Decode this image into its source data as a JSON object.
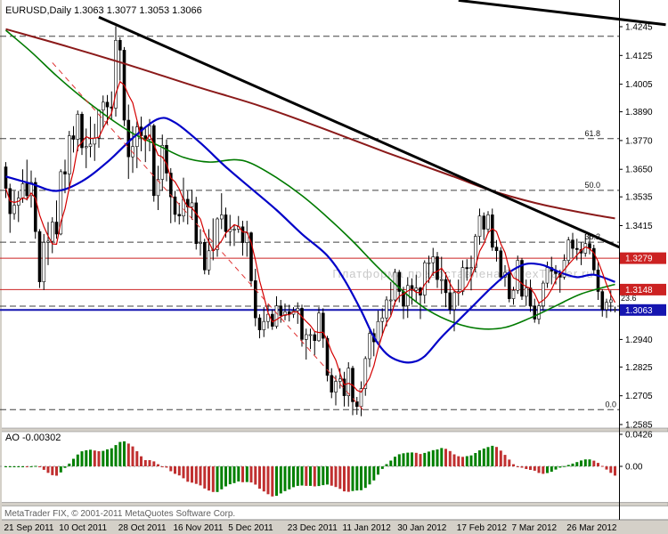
{
  "header": {
    "title": "EURUSD,Daily 1.3063 1.3077 1.3053 1.3066"
  },
  "watermark": "Платформа предоставлена ForexTrader.ru",
  "copyright": "MetaTrader FIX, © 2001-2011 MetaQuotes Software Corp.",
  "price_axis": {
    "ticks": [
      "1.4245",
      "1.4125",
      "1.4005",
      "1.3890",
      "1.3770",
      "1.3650",
      "1.3535",
      "1.3415",
      "1.2940",
      "1.2825",
      "1.2705",
      "1.2585"
    ]
  },
  "time_axis": {
    "labels": [
      {
        "text": "21 Sep 2011",
        "index": 0
      },
      {
        "text": "10 Oct 2011",
        "index": 13
      },
      {
        "text": "28 Oct 2011",
        "index": 27
      },
      {
        "text": "16 Nov 2011",
        "index": 40
      },
      {
        "text": "5 Dec 2011",
        "index": 53
      },
      {
        "text": "23 Dec 2011",
        "index": 67
      },
      {
        "text": "11 Jan 2012",
        "index": 80
      },
      {
        "text": "30 Jan 2012",
        "index": 93
      },
      {
        "text": "17 Feb 2012",
        "index": 107
      },
      {
        "text": "7 Mar 2012",
        "index": 120
      },
      {
        "text": "26 Mar 2012",
        "index": 133
      }
    ]
  },
  "indicator_panel": {
    "label": "AO -0.00302",
    "axis": [
      {
        "text": "0.0426",
        "value": 0.0426
      },
      {
        "text": "0.00",
        "value": 0
      }
    ]
  },
  "colors": {
    "bull": "#ffffff",
    "bear": "#000000",
    "wick": "#000000",
    "ma_fast": "#d40000",
    "ma_green": "#007a00",
    "ma_blue": "#0000c8",
    "ma_maroon": "#8b1a1a",
    "trendline": "#000000",
    "channel": "#e03030",
    "hline_red": "#cc2222",
    "hline_blue": "#1515b0",
    "tag_red": "#cc2222",
    "tag_blue": "#1515b0",
    "ao_up": "#008000",
    "ao_down": "#c03030",
    "fib": "#404040"
  },
  "chart_data": {
    "type": "candlestick",
    "symbol": "EURUSD",
    "timeframe": "Daily",
    "last_ohlc": {
      "open": 1.3063,
      "high": 1.3077,
      "low": 1.3053,
      "close": 1.3066
    },
    "y_axis_range": {
      "top": 1.4245,
      "bottom": 1.2585
    },
    "candles": [
      [
        1.366,
        1.368,
        1.353,
        1.357
      ],
      [
        1.357,
        1.359,
        1.3385,
        1.3465
      ],
      [
        1.3465,
        1.356,
        1.344,
        1.35
      ],
      [
        1.35,
        1.356,
        1.343,
        1.353
      ],
      [
        1.353,
        1.365,
        1.351,
        1.359
      ],
      [
        1.359,
        1.369,
        1.352,
        1.354
      ],
      [
        1.354,
        1.3645,
        1.349,
        1.3595
      ],
      [
        1.3595,
        1.3615,
        1.336,
        1.339
      ],
      [
        1.339,
        1.34,
        1.3155,
        1.318
      ],
      [
        1.318,
        1.338,
        1.3146,
        1.3345
      ],
      [
        1.3345,
        1.343,
        1.325,
        1.335
      ],
      [
        1.335,
        1.345,
        1.33,
        1.343
      ],
      [
        1.343,
        1.352,
        1.336,
        1.338
      ],
      [
        1.338,
        1.365,
        1.3375,
        1.364
      ],
      [
        1.364,
        1.369,
        1.355,
        1.363
      ],
      [
        1.363,
        1.381,
        1.357,
        1.379
      ],
      [
        1.379,
        1.383,
        1.372,
        1.3775
      ],
      [
        1.3775,
        1.3895,
        1.3725,
        1.388
      ],
      [
        1.388,
        1.389,
        1.371,
        1.374
      ],
      [
        1.374,
        1.382,
        1.3655,
        1.3745
      ],
      [
        1.3745,
        1.387,
        1.37,
        1.3755
      ],
      [
        1.3755,
        1.384,
        1.3685,
        1.378
      ],
      [
        1.378,
        1.39,
        1.374,
        1.3897
      ],
      [
        1.3897,
        1.3958,
        1.382,
        1.393
      ],
      [
        1.393,
        1.396,
        1.3835,
        1.391
      ],
      [
        1.391,
        1.3975,
        1.3855,
        1.3905
      ],
      [
        1.3905,
        1.4247,
        1.387,
        1.4188
      ],
      [
        1.4188,
        1.42,
        1.402,
        1.4147
      ],
      [
        1.4147,
        1.416,
        1.383,
        1.3855
      ],
      [
        1.3855,
        1.392,
        1.361,
        1.3702
      ],
      [
        1.3702,
        1.383,
        1.3635,
        1.3745
      ],
      [
        1.3745,
        1.385,
        1.3655,
        1.3827
      ],
      [
        1.3827,
        1.387,
        1.3725,
        1.379
      ],
      [
        1.379,
        1.382,
        1.368,
        1.3775
      ],
      [
        1.3775,
        1.386,
        1.3725,
        1.3832
      ],
      [
        1.3832,
        1.384,
        1.3515,
        1.354
      ],
      [
        1.354,
        1.3665,
        1.348,
        1.3608
      ],
      [
        1.3608,
        1.3795,
        1.356,
        1.375
      ],
      [
        1.375,
        1.3775,
        1.36,
        1.3634
      ],
      [
        1.3634,
        1.3655,
        1.3425,
        1.3535
      ],
      [
        1.3535,
        1.356,
        1.343,
        1.3462
      ],
      [
        1.3462,
        1.351,
        1.342,
        1.3455
      ],
      [
        1.3455,
        1.3615,
        1.343,
        1.3525
      ],
      [
        1.3525,
        1.356,
        1.342,
        1.3493
      ],
      [
        1.3493,
        1.3565,
        1.344,
        1.351
      ],
      [
        1.351,
        1.3535,
        1.3315,
        1.334
      ],
      [
        1.334,
        1.34,
        1.329,
        1.3345
      ],
      [
        1.3345,
        1.336,
        1.3212,
        1.323
      ],
      [
        1.323,
        1.34,
        1.321,
        1.331
      ],
      [
        1.331,
        1.3445,
        1.327,
        1.3315
      ],
      [
        1.3315,
        1.345,
        1.3285,
        1.3443
      ],
      [
        1.3443,
        1.355,
        1.34,
        1.346
      ],
      [
        1.346,
        1.349,
        1.3365,
        1.339
      ],
      [
        1.339,
        1.346,
        1.333,
        1.34
      ],
      [
        1.34,
        1.342,
        1.333,
        1.34
      ],
      [
        1.34,
        1.3455,
        1.3385,
        1.341
      ],
      [
        1.341,
        1.3435,
        1.329,
        1.3344
      ],
      [
        1.3344,
        1.3435,
        1.3285,
        1.3385
      ],
      [
        1.3385,
        1.339,
        1.316,
        1.3185
      ],
      [
        1.3185,
        1.3235,
        1.2995,
        1.303
      ],
      [
        1.303,
        1.3045,
        1.2945,
        1.298
      ],
      [
        1.298,
        1.3075,
        1.295,
        1.3015
      ],
      [
        1.3015,
        1.3085,
        1.2985,
        1.3045
      ],
      [
        1.3045,
        1.3065,
        1.298,
        1.2995
      ],
      [
        1.2995,
        1.312,
        1.2985,
        1.308
      ],
      [
        1.308,
        1.3105,
        1.301,
        1.304
      ],
      [
        1.304,
        1.309,
        1.302,
        1.3055
      ],
      [
        1.3055,
        1.3085,
        1.3015,
        1.3045
      ],
      [
        1.3045,
        1.3075,
        1.303,
        1.306
      ],
      [
        1.306,
        1.3095,
        1.3005,
        1.307
      ],
      [
        1.307,
        1.3085,
        1.291,
        1.294
      ],
      [
        1.294,
        1.2985,
        1.2856,
        1.296
      ],
      [
        1.296,
        1.2985,
        1.29,
        1.296
      ],
      [
        1.296,
        1.2975,
        1.2875,
        1.2935
      ],
      [
        1.2935,
        1.3075,
        1.293,
        1.305
      ],
      [
        1.305,
        1.307,
        1.2905,
        1.2945
      ],
      [
        1.2945,
        1.2955,
        1.2765,
        1.279
      ],
      [
        1.279,
        1.282,
        1.2695,
        1.272
      ],
      [
        1.272,
        1.279,
        1.2665,
        1.2765
      ],
      [
        1.2765,
        1.282,
        1.2735,
        1.2775
      ],
      [
        1.2775,
        1.2805,
        1.266,
        1.2705
      ],
      [
        1.2705,
        1.2845,
        1.266,
        1.282
      ],
      [
        1.282,
        1.283,
        1.2624,
        1.268
      ],
      [
        1.268,
        1.27,
        1.2626,
        1.266
      ],
      [
        1.266,
        1.2765,
        1.262,
        1.2735
      ],
      [
        1.2735,
        1.287,
        1.2705,
        1.286
      ],
      [
        1.286,
        1.2985,
        1.2825,
        1.2965
      ],
      [
        1.2965,
        1.2985,
        1.287,
        1.293
      ],
      [
        1.293,
        1.306,
        1.292,
        1.3015
      ],
      [
        1.3015,
        1.307,
        1.2955,
        1.303
      ],
      [
        1.303,
        1.312,
        1.2995,
        1.3105
      ],
      [
        1.3105,
        1.318,
        1.304,
        1.3105
      ],
      [
        1.3105,
        1.3235,
        1.3085,
        1.322
      ],
      [
        1.322,
        1.323,
        1.3095,
        1.314
      ],
      [
        1.314,
        1.316,
        1.3025,
        1.308
      ],
      [
        1.308,
        1.32,
        1.303,
        1.3165
      ],
      [
        1.3165,
        1.3195,
        1.3085,
        1.3145
      ],
      [
        1.3145,
        1.321,
        1.3095,
        1.3155
      ],
      [
        1.3155,
        1.316,
        1.3025,
        1.3125
      ],
      [
        1.3125,
        1.327,
        1.309,
        1.326
      ],
      [
        1.326,
        1.329,
        1.3175,
        1.326
      ],
      [
        1.326,
        1.3322,
        1.3205,
        1.3285
      ],
      [
        1.3285,
        1.3305,
        1.3155,
        1.319
      ],
      [
        1.319,
        1.3285,
        1.313,
        1.319
      ],
      [
        1.319,
        1.322,
        1.3075,
        1.3135
      ],
      [
        1.3135,
        1.319,
        1.3045,
        1.3065
      ],
      [
        1.3065,
        1.3145,
        1.2974,
        1.3135
      ],
      [
        1.3135,
        1.319,
        1.308,
        1.314
      ],
      [
        1.314,
        1.327,
        1.3125,
        1.324
      ],
      [
        1.324,
        1.3275,
        1.3185,
        1.3235
      ],
      [
        1.3235,
        1.329,
        1.3145,
        1.324
      ],
      [
        1.324,
        1.338,
        1.322,
        1.337
      ],
      [
        1.337,
        1.3486,
        1.3335,
        1.3455
      ],
      [
        1.3455,
        1.347,
        1.3355,
        1.34
      ],
      [
        1.34,
        1.3475,
        1.338,
        1.346
      ],
      [
        1.346,
        1.3486,
        1.331,
        1.3325
      ],
      [
        1.3325,
        1.3355,
        1.3265,
        1.331
      ],
      [
        1.331,
        1.3325,
        1.3185,
        1.32
      ],
      [
        1.32,
        1.325,
        1.316,
        1.322
      ],
      [
        1.322,
        1.324,
        1.3095,
        1.311
      ],
      [
        1.311,
        1.316,
        1.3085,
        1.3145
      ],
      [
        1.3145,
        1.329,
        1.313,
        1.327
      ],
      [
        1.327,
        1.328,
        1.3105,
        1.312
      ],
      [
        1.312,
        1.319,
        1.308,
        1.3155
      ],
      [
        1.3155,
        1.319,
        1.3055,
        1.308
      ],
      [
        1.308,
        1.311,
        1.301,
        1.3025
      ],
      [
        1.3025,
        1.309,
        1.3004,
        1.308
      ],
      [
        1.308,
        1.3185,
        1.306,
        1.3175
      ],
      [
        1.3175,
        1.3265,
        1.3155,
        1.324
      ],
      [
        1.324,
        1.3285,
        1.317,
        1.3225
      ],
      [
        1.3225,
        1.325,
        1.317,
        1.3215
      ],
      [
        1.3215,
        1.323,
        1.3135,
        1.32
      ],
      [
        1.32,
        1.3295,
        1.319,
        1.327
      ],
      [
        1.327,
        1.3368,
        1.325,
        1.3355
      ],
      [
        1.3355,
        1.3385,
        1.328,
        1.332
      ],
      [
        1.332,
        1.336,
        1.327,
        1.3315
      ],
      [
        1.3315,
        1.3345,
        1.325,
        1.33
      ],
      [
        1.33,
        1.338,
        1.3285,
        1.334
      ],
      [
        1.334,
        1.3385,
        1.3295,
        1.332
      ],
      [
        1.332,
        1.3335,
        1.321,
        1.323
      ],
      [
        1.323,
        1.3265,
        1.3105,
        1.314
      ],
      [
        1.314,
        1.315,
        1.3035,
        1.3065
      ],
      [
        1.3065,
        1.311,
        1.303,
        1.3095
      ],
      [
        1.3095,
        1.3145,
        1.3055,
        1.3105
      ],
      [
        1.3063,
        1.3077,
        1.3053,
        1.3066
      ]
    ],
    "overlays": {
      "fib_levels": [
        {
          "label": "",
          "price": 1.4205
        },
        {
          "label": "61.8",
          "price": 1.3778
        },
        {
          "label": "50.0",
          "price": 1.3562
        },
        {
          "label": "38.2",
          "price": 1.3346
        },
        {
          "label": "23.6",
          "price": 1.3079
        },
        {
          "label": "0.0",
          "price": 1.2647
        }
      ],
      "hlines": [
        {
          "price": 1.3279,
          "tag": "1.3279",
          "style": "red",
          "width": 1
        },
        {
          "price": 1.3148,
          "tag": "1.3148",
          "style": "red",
          "width": 1
        },
        {
          "price": 1.3063,
          "tag": "1.3063",
          "style": "blue",
          "width": 2
        }
      ],
      "trendlines": [
        {
          "name": "trendline-downtrend-main",
          "from": [
            22,
            1.4285
          ],
          "to": [
            145,
            1.3325
          ],
          "width": 3
        },
        {
          "name": "trendline-downtrend-upper",
          "from": [
            107,
            1.4355
          ],
          "to": [
            156,
            1.4253
          ],
          "width": 3
        }
      ],
      "channel_dashed_red": {
        "from": [
          11,
          1.4095
        ],
        "to": [
          85,
          1.2635
        ]
      },
      "ma_fast_red": {
        "type": "sma_close",
        "period": 5
      },
      "ma_green_anchors": [
        [
          0,
          1.423
        ],
        [
          6,
          1.414
        ],
        [
          12,
          1.404
        ],
        [
          18,
          1.395
        ],
        [
          24,
          1.387
        ],
        [
          30,
          1.38
        ],
        [
          36,
          1.375
        ],
        [
          42,
          1.37
        ],
        [
          48,
          1.368
        ],
        [
          54,
          1.369
        ],
        [
          58,
          1.3675
        ],
        [
          64,
          1.3615
        ],
        [
          70,
          1.354
        ],
        [
          76,
          1.345
        ],
        [
          82,
          1.335
        ],
        [
          88,
          1.324
        ],
        [
          94,
          1.314
        ],
        [
          100,
          1.306
        ],
        [
          106,
          1.301
        ],
        [
          112,
          1.2985
        ],
        [
          118,
          1.299
        ],
        [
          124,
          1.303
        ],
        [
          130,
          1.308
        ],
        [
          136,
          1.313
        ],
        [
          144,
          1.317
        ]
      ],
      "ma_blue_anchors": [
        [
          0,
          1.362
        ],
        [
          6,
          1.359
        ],
        [
          12,
          1.356
        ],
        [
          18,
          1.36
        ],
        [
          24,
          1.368
        ],
        [
          30,
          1.378
        ],
        [
          36,
          1.386
        ],
        [
          40,
          1.3845
        ],
        [
          46,
          1.376
        ],
        [
          52,
          1.366
        ],
        [
          58,
          1.357
        ],
        [
          64,
          1.348
        ],
        [
          70,
          1.338
        ],
        [
          76,
          1.329
        ],
        [
          80,
          1.319
        ],
        [
          84,
          1.306
        ],
        [
          87,
          1.295
        ],
        [
          90,
          1.288
        ],
        [
          93,
          1.285
        ],
        [
          96,
          1.2845
        ],
        [
          99,
          1.287
        ],
        [
          103,
          1.295
        ],
        [
          107,
          1.302
        ],
        [
          111,
          1.309
        ],
        [
          115,
          1.316
        ],
        [
          119,
          1.322
        ],
        [
          123,
          1.3255
        ],
        [
          127,
          1.325
        ],
        [
          131,
          1.322
        ],
        [
          135,
          1.32
        ],
        [
          139,
          1.321
        ],
        [
          144,
          1.318
        ]
      ],
      "ma_maroon_anchors": [
        [
          0,
          1.4235
        ],
        [
          15,
          1.416
        ],
        [
          30,
          1.408
        ],
        [
          45,
          1.3995
        ],
        [
          60,
          1.3915
        ],
        [
          75,
          1.382
        ],
        [
          90,
          1.372
        ],
        [
          105,
          1.3625
        ],
        [
          115,
          1.356
        ],
        [
          125,
          1.351
        ],
        [
          133,
          1.348
        ],
        [
          139,
          1.346
        ],
        [
          144,
          1.3445
        ]
      ]
    },
    "indicator": {
      "type": "awesome_oscillator",
      "label": "AO",
      "current_value": -0.00302,
      "fast_period": 5,
      "slow_period": 34
    }
  }
}
